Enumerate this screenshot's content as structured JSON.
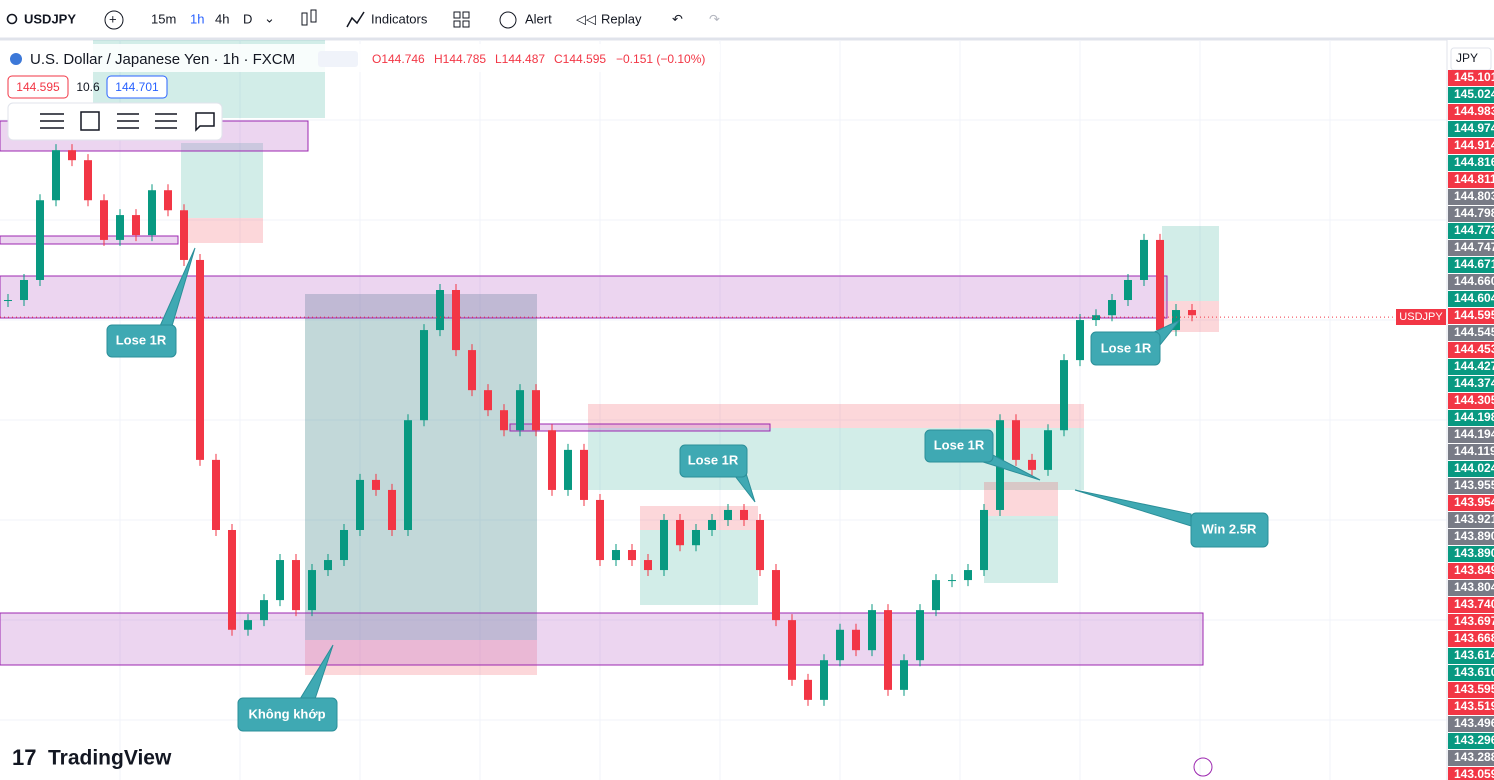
{
  "toolbar": {
    "symbol": "USDJPY",
    "intervals": [
      "15m",
      "1h",
      "4h",
      "D"
    ],
    "indicators": "Indicators",
    "alert": "Alert",
    "replay": "Replay"
  },
  "legend": {
    "title": "U.S. Dollar / Japanese Yen · 1h · FXCM",
    "open": "O144.746",
    "high": "H144.785",
    "low": "L144.487",
    "close": "C144.595",
    "change": "−0.151 (−0.10%)",
    "sell": "144.595",
    "spread": "10.6",
    "buy": "144.701"
  },
  "currency": "JPY",
  "symbol_tag": "USDJPY",
  "logo": "TradingView",
  "annotations": [
    "Lose 1R",
    "Không khớp",
    "Lose 1R",
    "Lose 1R",
    "Lose 1R",
    "Win 2.5R"
  ],
  "price_scale": [
    {
      "text": "145.101",
      "color": "#f23645"
    },
    {
      "text": "145.024",
      "color": "#089981"
    },
    {
      "text": "144.983",
      "color": "#f23645"
    },
    {
      "text": "144.974",
      "color": "#089981"
    },
    {
      "text": "144.914",
      "color": "#f23645"
    },
    {
      "text": "144.816",
      "color": "#089981"
    },
    {
      "text": "144.811",
      "color": "#f23645"
    },
    {
      "text": "144.803",
      "color": "#787b86"
    },
    {
      "text": "144.798",
      "color": "#787b86"
    },
    {
      "text": "144.773",
      "color": "#089981"
    },
    {
      "text": "144.747",
      "color": "#787b86"
    },
    {
      "text": "144.671",
      "color": "#089981"
    },
    {
      "text": "144.660",
      "color": "#787b86"
    },
    {
      "text": "144.604",
      "color": "#089981"
    },
    {
      "text": "144.595",
      "color": "#f23645"
    },
    {
      "text": "144.545",
      "color": "#787b86"
    },
    {
      "text": "144.453",
      "color": "#f23645"
    },
    {
      "text": "144.427",
      "color": "#089981"
    },
    {
      "text": "144.374",
      "color": "#089981"
    },
    {
      "text": "144.305",
      "color": "#f23645"
    },
    {
      "text": "144.198",
      "color": "#089981"
    },
    {
      "text": "144.194",
      "color": "#787b86"
    },
    {
      "text": "144.119",
      "color": "#787b86"
    },
    {
      "text": "144.024",
      "color": "#089981"
    },
    {
      "text": "143.955",
      "color": "#787b86"
    },
    {
      "text": "143.954",
      "color": "#f23645"
    },
    {
      "text": "143.921",
      "color": "#787b86"
    },
    {
      "text": "143.890",
      "color": "#787b86"
    },
    {
      "text": "143.890",
      "color": "#089981"
    },
    {
      "text": "143.849",
      "color": "#f23645"
    },
    {
      "text": "143.804",
      "color": "#787b86"
    },
    {
      "text": "143.740",
      "color": "#f23645"
    },
    {
      "text": "143.697",
      "color": "#f23645"
    },
    {
      "text": "143.668",
      "color": "#f23645"
    },
    {
      "text": "143.614",
      "color": "#089981"
    },
    {
      "text": "143.610",
      "color": "#089981"
    },
    {
      "text": "143.595",
      "color": "#f23645"
    },
    {
      "text": "143.519",
      "color": "#f23645"
    },
    {
      "text": "143.496",
      "color": "#787b86"
    },
    {
      "text": "143.296",
      "color": "#089981"
    },
    {
      "text": "143.288",
      "color": "#787b86"
    },
    {
      "text": "143.059",
      "color": "#f23645"
    }
  ],
  "chart_data": {
    "type": "candlestick",
    "ylim": [
      143.347,
      145.342
    ],
    "last_price": 144.595,
    "up_color": "#089981",
    "down_color": "#f23645",
    "values": [
      144.641,
      144.695,
      144.91,
      145.045,
      145.018,
      144.91,
      144.803,
      144.87,
      144.816,
      144.937,
      144.883,
      144.749,
      144.21,
      144.021,
      143.752,
      143.778,
      143.832,
      143.94,
      143.805,
      143.913,
      143.94,
      144.021,
      144.156,
      144.129,
      144.021,
      144.317,
      144.56,
      144.668,
      144.506,
      144.398,
      144.344,
      144.29,
      144.398,
      144.29,
      144.129,
      144.237,
      144.102,
      143.94,
      143.967,
      143.94,
      143.913,
      144.048,
      143.98,
      144.021,
      144.048,
      144.075,
      144.048,
      143.913,
      143.778,
      143.617,
      143.563,
      143.67,
      143.752,
      143.697,
      143.805,
      143.59,
      143.67,
      143.805,
      143.886,
      143.886,
      143.913,
      144.075,
      144.317,
      144.21,
      144.183,
      144.29,
      144.479,
      144.587,
      144.6,
      144.641,
      144.695,
      144.803,
      144.56,
      144.614,
      144.6
    ]
  }
}
